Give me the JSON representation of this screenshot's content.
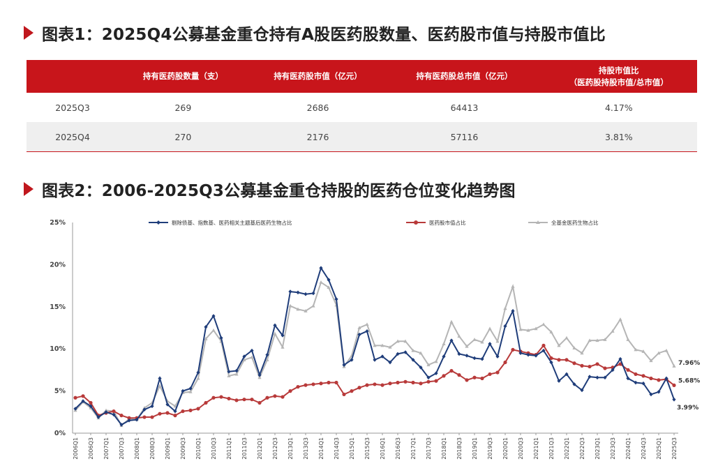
{
  "figure1": {
    "title": "图表1：2025Q4公募基金重仓持有A股医药股数量、医药股市值与持股市值比",
    "columns": [
      "",
      "持有医药股数量（支）",
      "持有医药股市值（亿元）",
      "持有医药股总市值（亿元）",
      "持股市值比",
      "（医药股持股市值/总市值）"
    ],
    "rows": [
      [
        "2025Q3",
        "269",
        "2686",
        "64413",
        "4.17%"
      ],
      [
        "2025Q4",
        "270",
        "2176",
        "57116",
        "3.81%"
      ]
    ]
  },
  "figure2": {
    "title": "图表2：2006-2025Q3公募基金重仓持股的医药仓位变化趋势图"
  },
  "chart_data": {
    "type": "line",
    "title": "图表2：2006-2025Q3公募基金重仓持股的医药仓位变化趋势图",
    "xlabel": "",
    "ylabel": "",
    "ylim": [
      0,
      25
    ],
    "yticks": [
      "0%",
      "5%",
      "10%",
      "15%",
      "20%",
      "25%"
    ],
    "grid": false,
    "legend_position": "top",
    "x": [
      "2006Q1",
      "2006Q2",
      "2006Q3",
      "2006Q4",
      "2007Q1",
      "2007Q2",
      "2007Q3",
      "2007Q4",
      "2008Q1",
      "2008Q2",
      "2008Q3",
      "2008Q4",
      "2009Q1",
      "2009Q2",
      "2009Q3",
      "2009Q4",
      "2010Q1",
      "2010Q2",
      "2010Q3",
      "2010Q4",
      "2011Q1",
      "2011Q2",
      "2011Q3",
      "2011Q4",
      "2012Q1",
      "2012Q2",
      "2012Q3",
      "2012Q4",
      "2013Q1",
      "2013Q2",
      "2013Q3",
      "2013Q4",
      "2014Q1",
      "2014Q2",
      "2014Q3",
      "2014Q4",
      "2015Q1",
      "2015Q2",
      "2015Q3",
      "2015Q4",
      "2016Q1",
      "2016Q2",
      "2016Q3",
      "2016Q4",
      "2017Q1",
      "2017Q2",
      "2017Q3",
      "2017Q4",
      "2018Q1",
      "2018Q2",
      "2018Q3",
      "2018Q4",
      "2019Q1",
      "2019Q2",
      "2019Q3",
      "2019Q4",
      "2020Q1",
      "2020Q2",
      "2020Q3",
      "2020Q4",
      "2021Q1",
      "2021Q2",
      "2021Q3",
      "2021Q4",
      "2022Q1",
      "2022Q2",
      "2022Q3",
      "2022Q4",
      "2023Q1",
      "2023Q2",
      "2023Q3",
      "2023Q4",
      "2024Q1",
      "2024Q2",
      "2024Q3",
      "2024Q4",
      "2025Q1",
      "2025Q2",
      "2025Q3"
    ],
    "x_tick_labels": [
      "2006Q1",
      "2006Q3",
      "2007Q1",
      "2007Q3",
      "2008Q1",
      "2008Q3",
      "2009Q1",
      "2009Q3",
      "2010Q1",
      "2010Q3",
      "2011Q1",
      "2011Q3",
      "2012Q1",
      "2012Q3",
      "2013Q1",
      "2013Q3",
      "2014Q1",
      "2014Q3",
      "2015Q1",
      "2015Q3",
      "2016Q1",
      "2016Q3",
      "2017Q1",
      "2017Q3",
      "2018Q1",
      "2018Q3",
      "2019Q1",
      "2019Q3",
      "2020Q1",
      "2020Q3",
      "2021Q1",
      "2021Q3",
      "2022Q1",
      "2022Q3",
      "2023Q1",
      "2023Q3",
      "2024Q1",
      "2024Q3",
      "2025Q1",
      "2025Q3"
    ],
    "series": [
      {
        "name": "剔除债基、指数基、医药相关主题基后医药生物占比",
        "color": "#1f3d7a",
        "marker": "diamond",
        "end_label": "3.99%",
        "values": [
          2.9,
          3.8,
          3.2,
          1.9,
          2.5,
          2.2,
          1.0,
          1.5,
          1.6,
          2.8,
          3.2,
          6.5,
          3.4,
          2.6,
          5.0,
          5.3,
          7.2,
          12.6,
          13.9,
          11.3,
          7.3,
          7.4,
          9.1,
          9.8,
          6.9,
          9.3,
          12.8,
          11.6,
          16.8,
          16.7,
          16.5,
          16.6,
          19.6,
          18.2,
          15.9,
          8.1,
          8.7,
          11.7,
          12.1,
          8.7,
          9.1,
          8.4,
          9.4,
          9.6,
          8.7,
          7.8,
          6.6,
          7.1,
          9.1,
          11.0,
          9.4,
          9.2,
          8.9,
          8.8,
          10.6,
          9.1,
          12.7,
          14.5,
          9.5,
          9.3,
          9.2,
          9.8,
          8.4,
          6.2,
          7.0,
          5.8,
          5.1,
          6.7,
          6.6,
          6.6,
          7.5,
          8.8,
          6.5,
          6.0,
          5.9,
          4.6,
          4.9,
          6.5,
          3.99
        ]
      },
      {
        "name": "医药股市值占比",
        "color": "#b83a3a",
        "marker": "circle",
        "end_label": "5.68%",
        "values": [
          4.2,
          4.4,
          3.6,
          2.1,
          2.4,
          2.6,
          2.1,
          1.8,
          1.8,
          1.9,
          1.9,
          2.3,
          2.4,
          2.1,
          2.6,
          2.7,
          2.9,
          3.6,
          4.2,
          4.3,
          4.1,
          3.9,
          4.0,
          4.0,
          3.6,
          4.2,
          4.4,
          4.3,
          5.0,
          5.5,
          5.7,
          5.8,
          5.9,
          6.0,
          6.0,
          4.6,
          5.0,
          5.4,
          5.7,
          5.8,
          5.7,
          5.9,
          6.0,
          6.1,
          6.0,
          5.9,
          6.1,
          6.2,
          6.8,
          7.4,
          6.9,
          6.3,
          6.6,
          6.5,
          7.0,
          7.2,
          8.4,
          9.9,
          9.7,
          9.5,
          9.3,
          10.4,
          8.9,
          8.7,
          8.7,
          8.3,
          8.0,
          7.9,
          8.2,
          7.7,
          7.8,
          8.2,
          7.5,
          7.0,
          6.8,
          6.5,
          6.3,
          6.4,
          5.68
        ]
      },
      {
        "name": "全基金医药生物占比",
        "color": "#b5b5b5",
        "marker": "triangle",
        "end_label": "7.96%",
        "values": [
          2.7,
          3.7,
          3.0,
          1.8,
          2.7,
          2.6,
          0.9,
          1.7,
          1.6,
          3.0,
          3.6,
          5.6,
          3.8,
          3.2,
          4.8,
          4.9,
          6.5,
          11.2,
          12.2,
          10.9,
          6.8,
          7.0,
          8.7,
          9.0,
          6.6,
          8.7,
          11.8,
          10.2,
          15.1,
          14.7,
          14.5,
          15.1,
          17.9,
          17.3,
          15.2,
          7.9,
          9.2,
          12.5,
          12.9,
          10.4,
          10.4,
          10.2,
          10.9,
          10.9,
          9.8,
          9.5,
          8.1,
          8.5,
          10.6,
          13.2,
          11.5,
          10.3,
          11.1,
          10.8,
          12.4,
          10.9,
          14.8,
          17.4,
          12.3,
          12.2,
          12.4,
          12.9,
          12.0,
          10.4,
          11.3,
          10.1,
          9.5,
          11.0,
          11.0,
          11.1,
          12.1,
          13.5,
          11.1,
          9.9,
          9.7,
          8.6,
          9.5,
          9.8,
          7.96
        ]
      }
    ]
  }
}
